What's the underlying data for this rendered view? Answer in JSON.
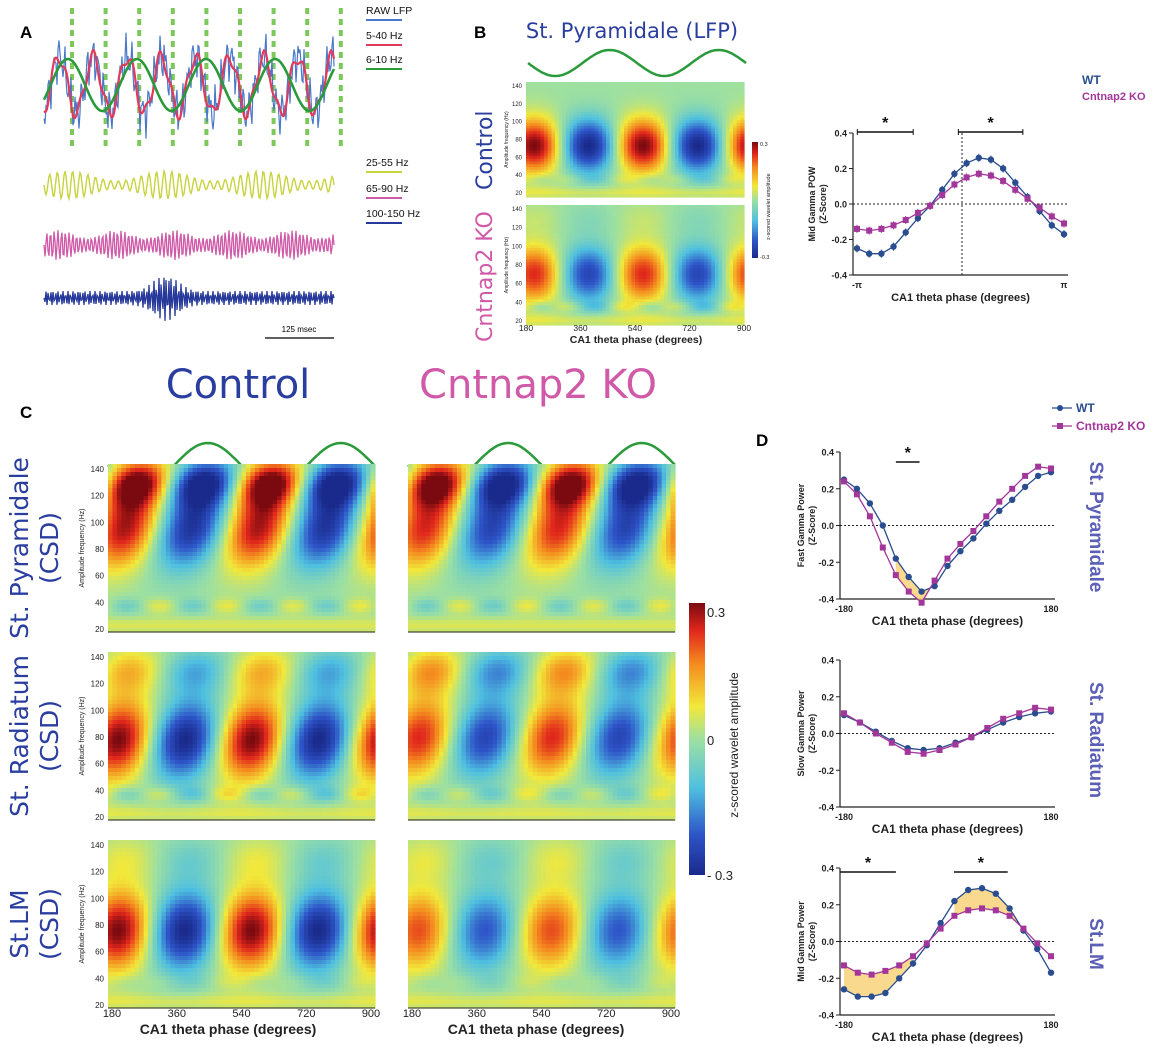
{
  "panels": {
    "A": "A",
    "B": "B",
    "C": "C",
    "D": "D"
  },
  "panel_a": {
    "traces": [
      {
        "label": "RAW LFP",
        "color": "#4a78c9"
      },
      {
        "label": "5-40 Hz",
        "color": "#e03a5c"
      },
      {
        "label": "6-10 Hz",
        "color": "#2a9a3a"
      },
      {
        "label": "25-55 Hz",
        "color": "#c8d33f"
      },
      {
        "label": "65-90 Hz",
        "color": "#d05aa8"
      },
      {
        "label": "100-150 Hz",
        "color": "#26399a"
      }
    ],
    "scale_bar": "125 msec"
  },
  "panel_b": {
    "title": "St. Pyramidale (LFP)",
    "rows": [
      "Control",
      "Cntnap2 KO"
    ],
    "ylabel": "Amplitude frequency (Hz)",
    "y_ticks": [
      "140",
      "120",
      "100",
      "80",
      "60",
      "40",
      "20"
    ],
    "x_ticks": [
      "180",
      "360",
      "540",
      "720",
      "900"
    ],
    "xlabel": "CA1 theta phase (degrees)",
    "colorbar_label": "z-scored wavelet amplitude",
    "colorbar_max": "0.3",
    "colorbar_min": "-0.3"
  },
  "panel_c": {
    "columns": [
      "Control",
      "Cntnap2 KO"
    ],
    "rows": [
      "St. Pyramidale\n(CSD)",
      "St. Radiatum\n(CSD)",
      "St.LM\n(CSD)"
    ],
    "row_line1": [
      "St. Pyramidale",
      "St. Radiatum",
      "St.LM"
    ],
    "row_line2": [
      "(CSD)",
      "(CSD)",
      "(CSD)"
    ],
    "ylabel": "Amplitude frequency (Hz)",
    "y_ticks": [
      "140",
      "120",
      "100",
      "80",
      "60",
      "40",
      "20"
    ],
    "x_ticks": [
      "180",
      "360",
      "540",
      "720",
      "900"
    ],
    "xlabel": "CA1 theta phase (degrees)",
    "colorbar_label": "z-scored wavelet amplitude",
    "colorbar_max": "0.3",
    "colorbar_mid": "0",
    "colorbar_min": "- 0.3"
  },
  "chart_data": [
    {
      "type": "line",
      "panel": "B",
      "legend": [
        "WT",
        "Cntnap2 KO"
      ],
      "ylabel": "Mid Gamma POW\n(Z-Score)",
      "xlabel": "CA1 theta phase (degrees)",
      "x_tick_labels": [
        "-π",
        "π"
      ],
      "ylim": [
        -0.4,
        0.4
      ],
      "y_ticks": [
        "0.4",
        "0.2",
        "0.0",
        "-0.2",
        "-0.4"
      ],
      "significance": [
        "*",
        "*"
      ],
      "series": [
        {
          "name": "WT",
          "color": "#2a4d8f",
          "values": [
            -0.25,
            -0.28,
            -0.28,
            -0.24,
            -0.16,
            -0.08,
            -0.01,
            0.08,
            0.17,
            0.23,
            0.26,
            0.25,
            0.2,
            0.12,
            0.04,
            -0.04,
            -0.12,
            -0.17
          ]
        },
        {
          "name": "Cntnap2 KO",
          "color": "#a3369a",
          "values": [
            -0.14,
            -0.15,
            -0.14,
            -0.12,
            -0.09,
            -0.05,
            -0.01,
            0.05,
            0.11,
            0.15,
            0.17,
            0.16,
            0.13,
            0.08,
            0.03,
            -0.02,
            -0.07,
            -0.11
          ]
        }
      ]
    },
    {
      "type": "line",
      "panel": "D",
      "row": "St. Pyramidale",
      "legend": [
        "WT",
        "Cntnap2 KO"
      ],
      "ylabel": "Fast Gamma Power\n(Z-Score)",
      "xlabel": "CA1 theta phase (degrees)",
      "x_tick_labels": [
        "-180",
        "180"
      ],
      "ylim": [
        -0.4,
        0.4
      ],
      "y_ticks": [
        "0.4",
        "0.2",
        "0.0",
        "-0.2",
        "-0.4"
      ],
      "significance": [
        "*"
      ],
      "series": [
        {
          "name": "WT",
          "color": "#2a4d8f",
          "values": [
            0.25,
            0.2,
            0.12,
            0.0,
            -0.18,
            -0.28,
            -0.36,
            -0.33,
            -0.22,
            -0.14,
            -0.07,
            0.01,
            0.08,
            0.14,
            0.21,
            0.27,
            0.29
          ]
        },
        {
          "name": "Cntnap2 KO",
          "color": "#a3369a",
          "values": [
            0.24,
            0.17,
            0.05,
            -0.12,
            -0.27,
            -0.36,
            -0.42,
            -0.3,
            -0.18,
            -0.1,
            -0.03,
            0.05,
            0.13,
            0.2,
            0.27,
            0.32,
            0.31
          ]
        }
      ]
    },
    {
      "type": "line",
      "panel": "D",
      "row": "St. Radiatum",
      "ylabel": "Slow Gamma Power\n(Z-Score)",
      "xlabel": "CA1 theta phase (degrees)",
      "x_tick_labels": [
        "-180",
        "180"
      ],
      "ylim": [
        -0.4,
        0.4
      ],
      "y_ticks": [
        "0.4",
        "0.2",
        "0.0",
        "-0.2",
        "-0.4"
      ],
      "series": [
        {
          "name": "WT",
          "color": "#2a4d8f",
          "values": [
            0.1,
            0.06,
            0.01,
            -0.04,
            -0.08,
            -0.09,
            -0.08,
            -0.05,
            -0.02,
            0.02,
            0.06,
            0.09,
            0.11,
            0.12
          ]
        },
        {
          "name": "Cntnap2 KO",
          "color": "#a3369a",
          "values": [
            0.11,
            0.06,
            0.0,
            -0.05,
            -0.1,
            -0.11,
            -0.09,
            -0.06,
            -0.02,
            0.03,
            0.08,
            0.11,
            0.14,
            0.13
          ]
        }
      ]
    },
    {
      "type": "line",
      "panel": "D",
      "row": "St.LM",
      "ylabel": "Mid Gamma Power\n(Z-Score)",
      "xlabel": "CA1 theta phase (degrees)",
      "x_tick_labels": [
        "-180",
        "180"
      ],
      "ylim": [
        -0.4,
        0.4
      ],
      "y_ticks": [
        "0.4",
        "0.2",
        "0.0",
        "-0.2",
        "-0.4"
      ],
      "significance": [
        "*",
        "*"
      ],
      "series": [
        {
          "name": "WT",
          "color": "#2a4d8f",
          "values": [
            -0.26,
            -0.3,
            -0.3,
            -0.28,
            -0.2,
            -0.12,
            -0.02,
            0.1,
            0.22,
            0.28,
            0.29,
            0.26,
            0.18,
            0.06,
            -0.04,
            -0.17
          ]
        },
        {
          "name": "Cntnap2 KO",
          "color": "#a3369a",
          "values": [
            -0.13,
            -0.17,
            -0.18,
            -0.16,
            -0.13,
            -0.08,
            -0.01,
            0.07,
            0.14,
            0.17,
            0.18,
            0.17,
            0.14,
            0.07,
            -0.01,
            -0.08
          ]
        }
      ]
    }
  ],
  "heatmap_data": {
    "lfp": {
      "control": {
        "amp": 1.0,
        "hf": 0.0,
        "lf": 0.3,
        "tilt": 0.0,
        "center": 78
      },
      "ko": {
        "amp": 0.8,
        "hf": 0.1,
        "lf": 0.5,
        "tilt": 0.0,
        "center": 75
      }
    },
    "pyr": {
      "control": {
        "amp": 0.9,
        "hf": 1.0,
        "lf": 0.6,
        "tilt": 1.0,
        "center": 100
      },
      "ko": {
        "amp": 0.8,
        "hf": 1.0,
        "lf": 0.6,
        "tilt": 1.0,
        "center": 100
      }
    },
    "rad": {
      "control": {
        "amp": 1.0,
        "hf": 0.4,
        "lf": 0.6,
        "tilt": 0.6,
        "center": 82
      },
      "ko": {
        "amp": 0.8,
        "hf": 0.5,
        "lf": 0.5,
        "tilt": 0.7,
        "center": 84
      }
    },
    "lm": {
      "control": {
        "amp": 1.0,
        "hf": 0.2,
        "lf": 0.2,
        "tilt": 0.3,
        "center": 80
      },
      "ko": {
        "amp": 0.7,
        "hf": 0.2,
        "lf": 0.2,
        "tilt": 0.3,
        "center": 80
      }
    }
  }
}
